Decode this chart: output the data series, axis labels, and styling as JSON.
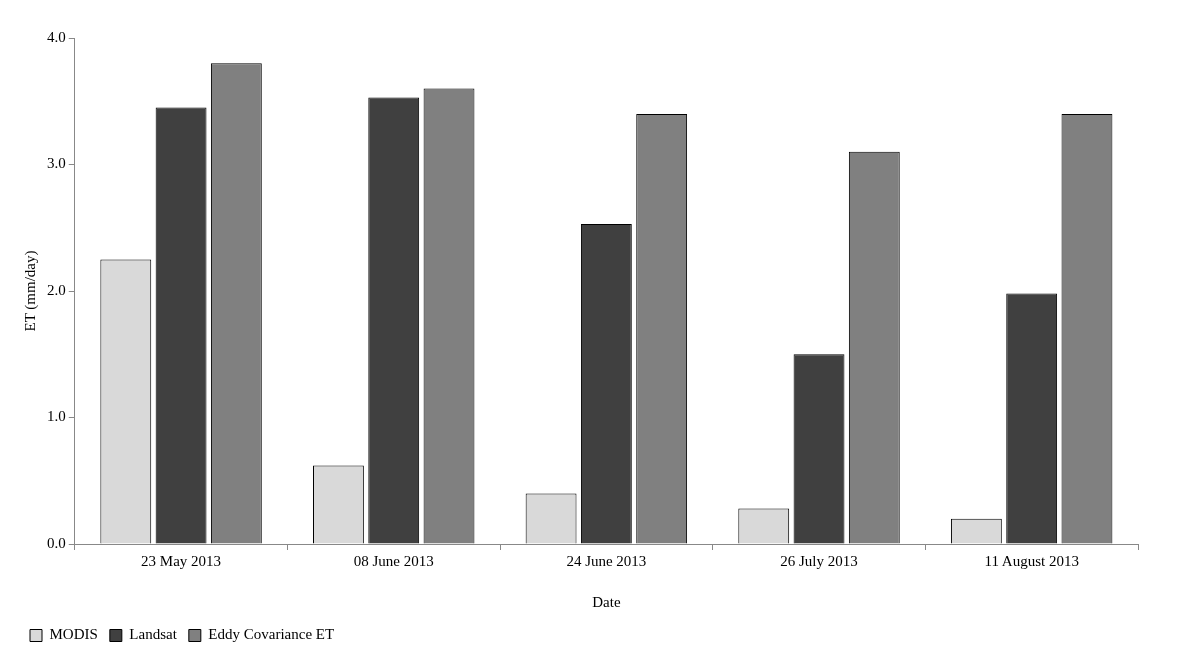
{
  "chart_data": {
    "type": "bar",
    "xlabel": "Date",
    "ylabel": "ET (mm/day)",
    "categories": [
      "23 May 2013",
      "08 June 2013",
      "24 June 2013",
      "26 July 2013",
      "11 August 2013"
    ],
    "series": [
      {
        "name": "MODIS",
        "color": "#d9d9d9",
        "values": [
          2.25,
          0.62,
          0.4,
          0.28,
          0.2
        ]
      },
      {
        "name": "Landsat",
        "color": "#404040",
        "values": [
          3.45,
          3.53,
          2.53,
          1.5,
          1.98
        ]
      },
      {
        "name": "Eddy Covariance ET",
        "color": "#808080",
        "values": [
          3.8,
          3.6,
          3.4,
          3.1,
          3.4
        ]
      }
    ],
    "ylim": [
      0,
      4
    ],
    "yticks": [
      {
        "value": 0,
        "label": "0.0"
      },
      {
        "value": 1,
        "label": "1.0"
      },
      {
        "value": 2,
        "label": "2.0"
      },
      {
        "value": 3,
        "label": "3.0"
      },
      {
        "value": 4,
        "label": "4.0"
      }
    ],
    "grid": false,
    "legend": "bottom"
  }
}
